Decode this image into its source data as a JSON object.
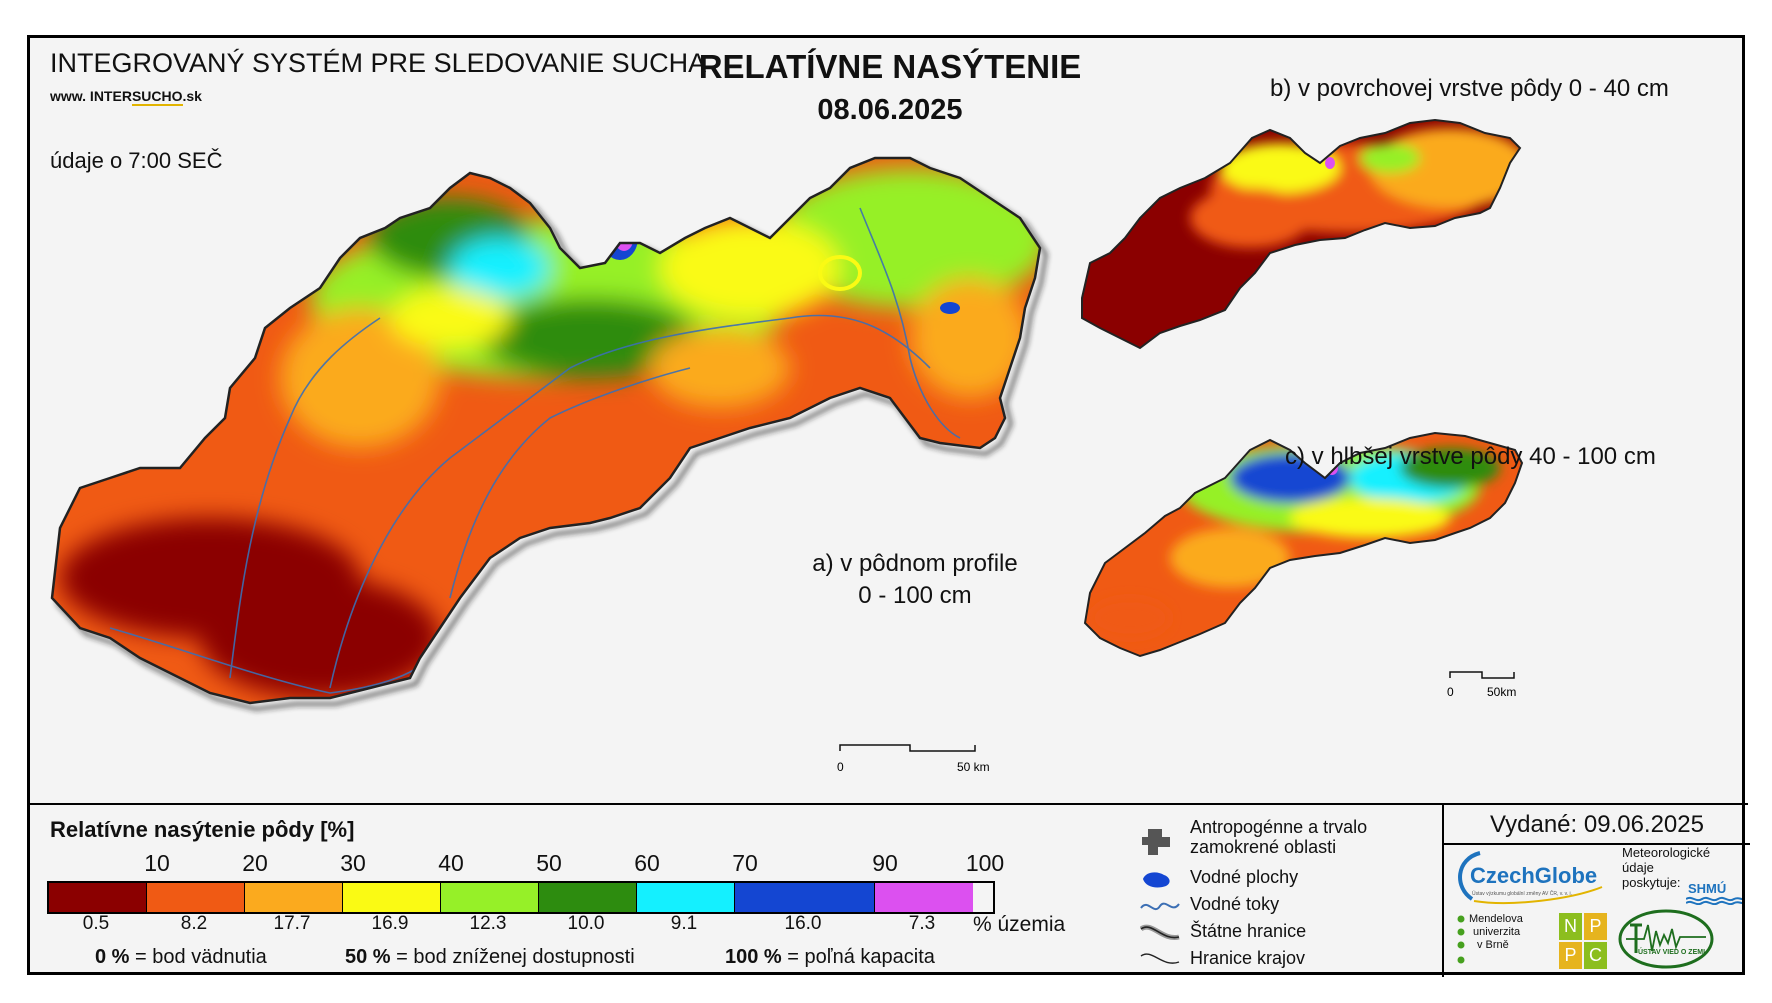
{
  "header": {
    "system_title": "INTEGROVANÝ SYSTÉM PRE SLEDOVANIE SUCHA",
    "website_prefix": "www. INTER",
    "website_mid": "SUCHO",
    "website_suffix": ".sk",
    "observation_time": "údaje o 7:00 SEČ",
    "title": "RELATÍVNE NASÝTENIE",
    "date": "08.06.2025"
  },
  "maps": {
    "a_label_line1": "a) v pôdnom profile",
    "a_label_line2": "0 - 100 cm",
    "b_label": "b) v povrchovej vrstve pôdy 0 - 40 cm",
    "c_label": "c) v hlbšej vrstve pôdy 40 - 100 cm",
    "main_scale_start": "0",
    "main_scale_end": "50 km",
    "small_scale_start": "0",
    "small_scale_end": "50km"
  },
  "legend": {
    "title": "Relatívne nasýtenie pôdy [%]",
    "ticks": [
      "10",
      "20",
      "30",
      "40",
      "50",
      "60",
      "70",
      "90",
      "100"
    ],
    "classes": [
      {
        "color": "#8b0000",
        "percent": "0.5"
      },
      {
        "color": "#f05a14",
        "percent": "8.2"
      },
      {
        "color": "#fbaa1e",
        "percent": "17.7"
      },
      {
        "color": "#fafa14",
        "percent": "16.9"
      },
      {
        "color": "#96f028",
        "percent": "12.3"
      },
      {
        "color": "#2d8c0f",
        "percent": "10.0"
      },
      {
        "color": "#14f0ff",
        "percent": "9.1"
      },
      {
        "color": "#1446d2",
        "percent": "16.0"
      },
      {
        "color": "#dc50f0",
        "percent": "7.3"
      }
    ],
    "unit_label": "% územia",
    "expl_0_value": "0 %",
    "expl_0_text": "= bod vädnutia",
    "expl_50_value": "50 %",
    "expl_50_text": "= bod zníženej dostupnosti",
    "expl_100_value": "100 %",
    "expl_100_text": "= poľná kapacita"
  },
  "symbols": [
    {
      "icon": "anthropogenic-area-icon",
      "label_line1": "Antropogénne a trvalo",
      "label_line2": "zamokrené oblasti"
    },
    {
      "icon": "water-body-icon",
      "label_line1": "Vodné plochy"
    },
    {
      "icon": "water-stream-icon",
      "label_line1": "Vodné toky"
    },
    {
      "icon": "state-border-icon",
      "label_line1": "Štátne hranice"
    },
    {
      "icon": "region-border-icon",
      "label_line1": "Hranice krajov"
    }
  ],
  "footer": {
    "issued": "Vydané: 09.06.2025",
    "czechglobe": "CzechGlobe",
    "czechglobe_sub": "Ústav výzkumu globální změny AV ČR, v. v. i.",
    "met_data_line1": "Meteorologické",
    "met_data_line2": "údaje",
    "met_data_line3": "poskytuje:",
    "shmu": "SHMÚ",
    "mendel_line1": "Mendelova",
    "mendel_line2": "univerzita",
    "mendel_line3": "v Brně",
    "nppc_n": "N",
    "nppc_p1": "P",
    "nppc_p2": "P",
    "nppc_c": "C",
    "uvz": "ÚSTAV VIED O ZEMI"
  }
}
